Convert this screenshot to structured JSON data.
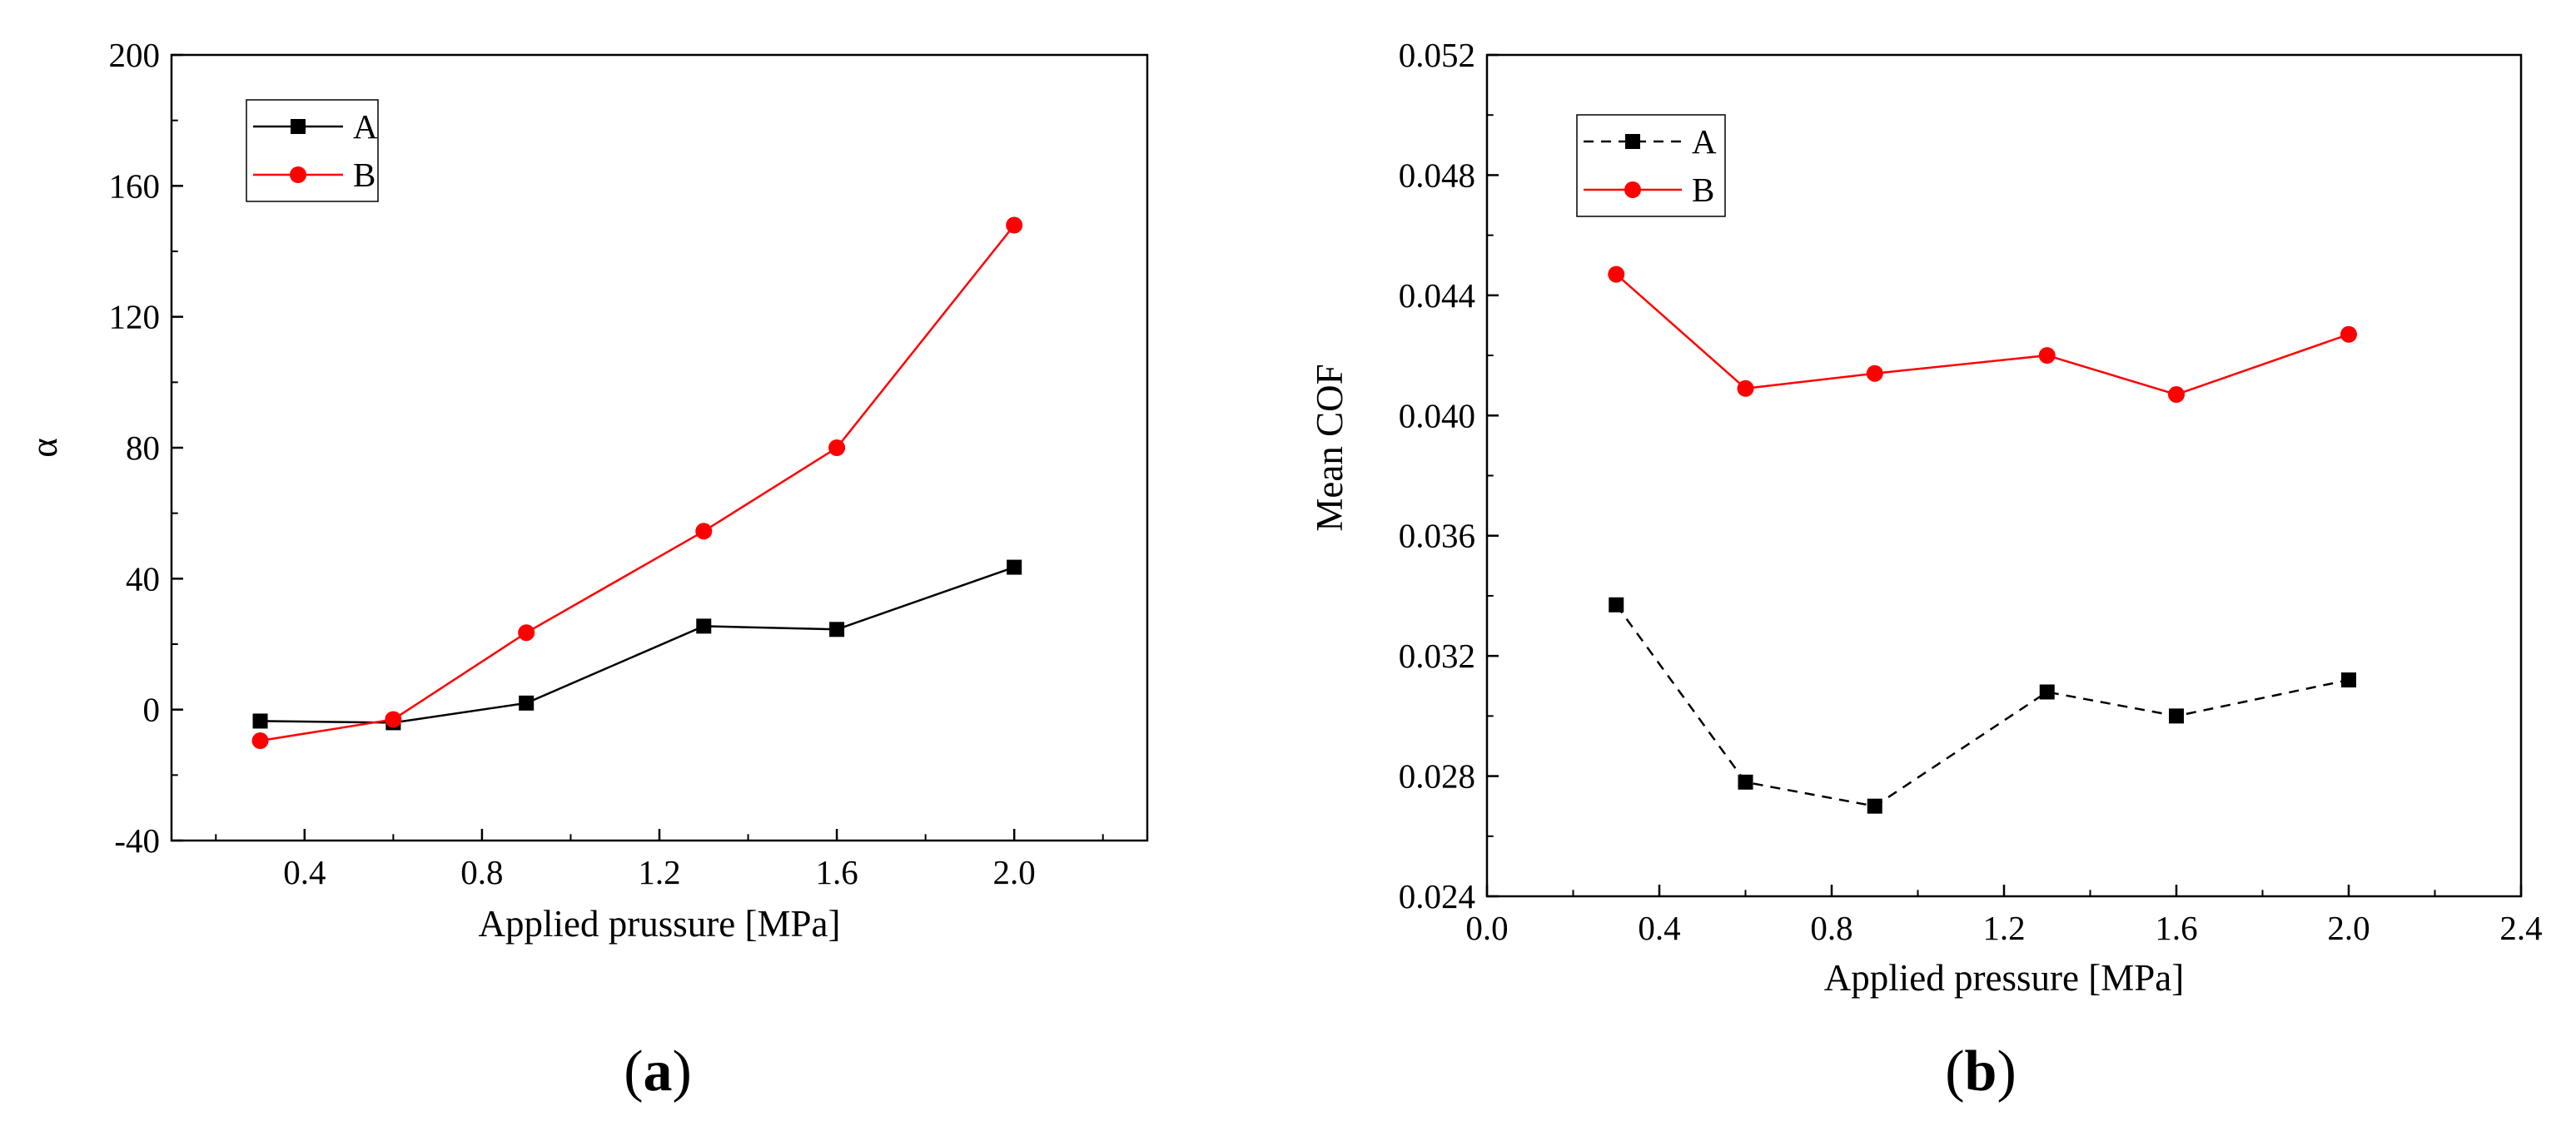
{
  "chart_data": [
    {
      "type": "line",
      "panel_label": "a",
      "xlabel": "Applied prussure [MPa]",
      "ylabel": "α",
      "xlim": [
        0.1,
        2.3
      ],
      "ylim": [
        -40,
        200
      ],
      "xticks": [
        0.4,
        0.8,
        1.2,
        1.6,
        2.0
      ],
      "xtick_labels": [
        "0.4",
        "0.8",
        "1.2",
        "1.6",
        "2.0"
      ],
      "yticks": [
        -40,
        0,
        40,
        80,
        120,
        160,
        200
      ],
      "ytick_labels": [
        "-40",
        "0",
        "40",
        "80",
        "120",
        "160",
        "200"
      ],
      "legend_position": "top-left",
      "series": [
        {
          "name": "A",
          "color": "#000000",
          "marker": "square",
          "dash": "solid",
          "x": [
            0.3,
            0.6,
            0.9,
            1.3,
            1.6,
            2.0
          ],
          "y": [
            -3.5,
            -4,
            2,
            25.5,
            24.5,
            43.5
          ]
        },
        {
          "name": "B",
          "color": "#ff0000",
          "marker": "circle",
          "dash": "solid",
          "x": [
            0.3,
            0.6,
            0.9,
            1.3,
            1.6,
            2.0
          ],
          "y": [
            -9.5,
            -3,
            23.5,
            54.5,
            80,
            148
          ]
        }
      ]
    },
    {
      "type": "line",
      "panel_label": "b",
      "xlabel": "Applied pressure [MPa]",
      "ylabel": "Mean COF",
      "xlim": [
        0.0,
        2.4
      ],
      "ylim": [
        0.024,
        0.052
      ],
      "xticks": [
        0.0,
        0.4,
        0.8,
        1.2,
        1.6,
        2.0,
        2.4
      ],
      "xtick_labels": [
        "0.0",
        "0.4",
        "0.8",
        "1.2",
        "1.6",
        "2.0",
        "2.4"
      ],
      "yticks": [
        0.024,
        0.028,
        0.032,
        0.036,
        0.04,
        0.044,
        0.048,
        0.052
      ],
      "ytick_labels": [
        "0.024",
        "0.028",
        "0.032",
        "0.036",
        "0.040",
        "0.044",
        "0.048",
        "0.052"
      ],
      "legend_position": "top-left",
      "series": [
        {
          "name": "A",
          "color": "#000000",
          "marker": "square",
          "dash": "dashed",
          "x": [
            0.3,
            0.6,
            0.9,
            1.3,
            1.6,
            2.0
          ],
          "y": [
            0.0337,
            0.0278,
            0.027,
            0.0308,
            0.03,
            0.0312
          ]
        },
        {
          "name": "B",
          "color": "#ff0000",
          "marker": "circle",
          "dash": "solid",
          "x": [
            0.3,
            0.6,
            0.9,
            1.3,
            1.6,
            2.0
          ],
          "y": [
            0.0447,
            0.0409,
            0.0414,
            0.042,
            0.0407,
            0.0427
          ]
        }
      ]
    }
  ]
}
